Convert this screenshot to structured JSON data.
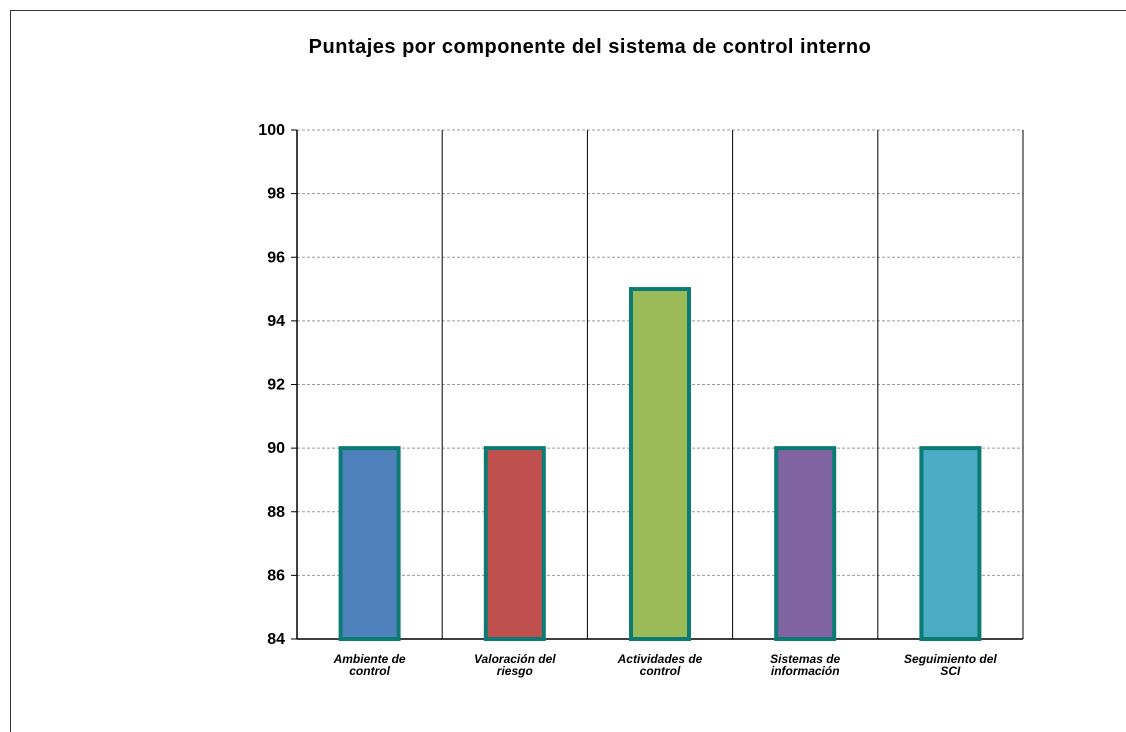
{
  "chart_data": {
    "type": "bar",
    "title": "Puntajes por componente del sistema de control interno",
    "categories": [
      [
        "Ambiente de",
        "control"
      ],
      [
        "Valoración del",
        "riesgo"
      ],
      [
        "Actividades de",
        "control"
      ],
      [
        "Sistemas de",
        "información"
      ],
      [
        "Seguimiento del",
        "SCI"
      ]
    ],
    "values": [
      90,
      90,
      95,
      90,
      90
    ],
    "ylim": [
      84,
      100
    ],
    "yticks": [
      84,
      86,
      88,
      90,
      92,
      94,
      96,
      98,
      100
    ],
    "bar_colors": [
      "#4f81bd",
      "#c0504d",
      "#9bbb59",
      "#8064a2",
      "#4bacc6"
    ],
    "bar_border_color": "#0b7b73",
    "grid": true,
    "xlabel": "",
    "ylabel": ""
  }
}
